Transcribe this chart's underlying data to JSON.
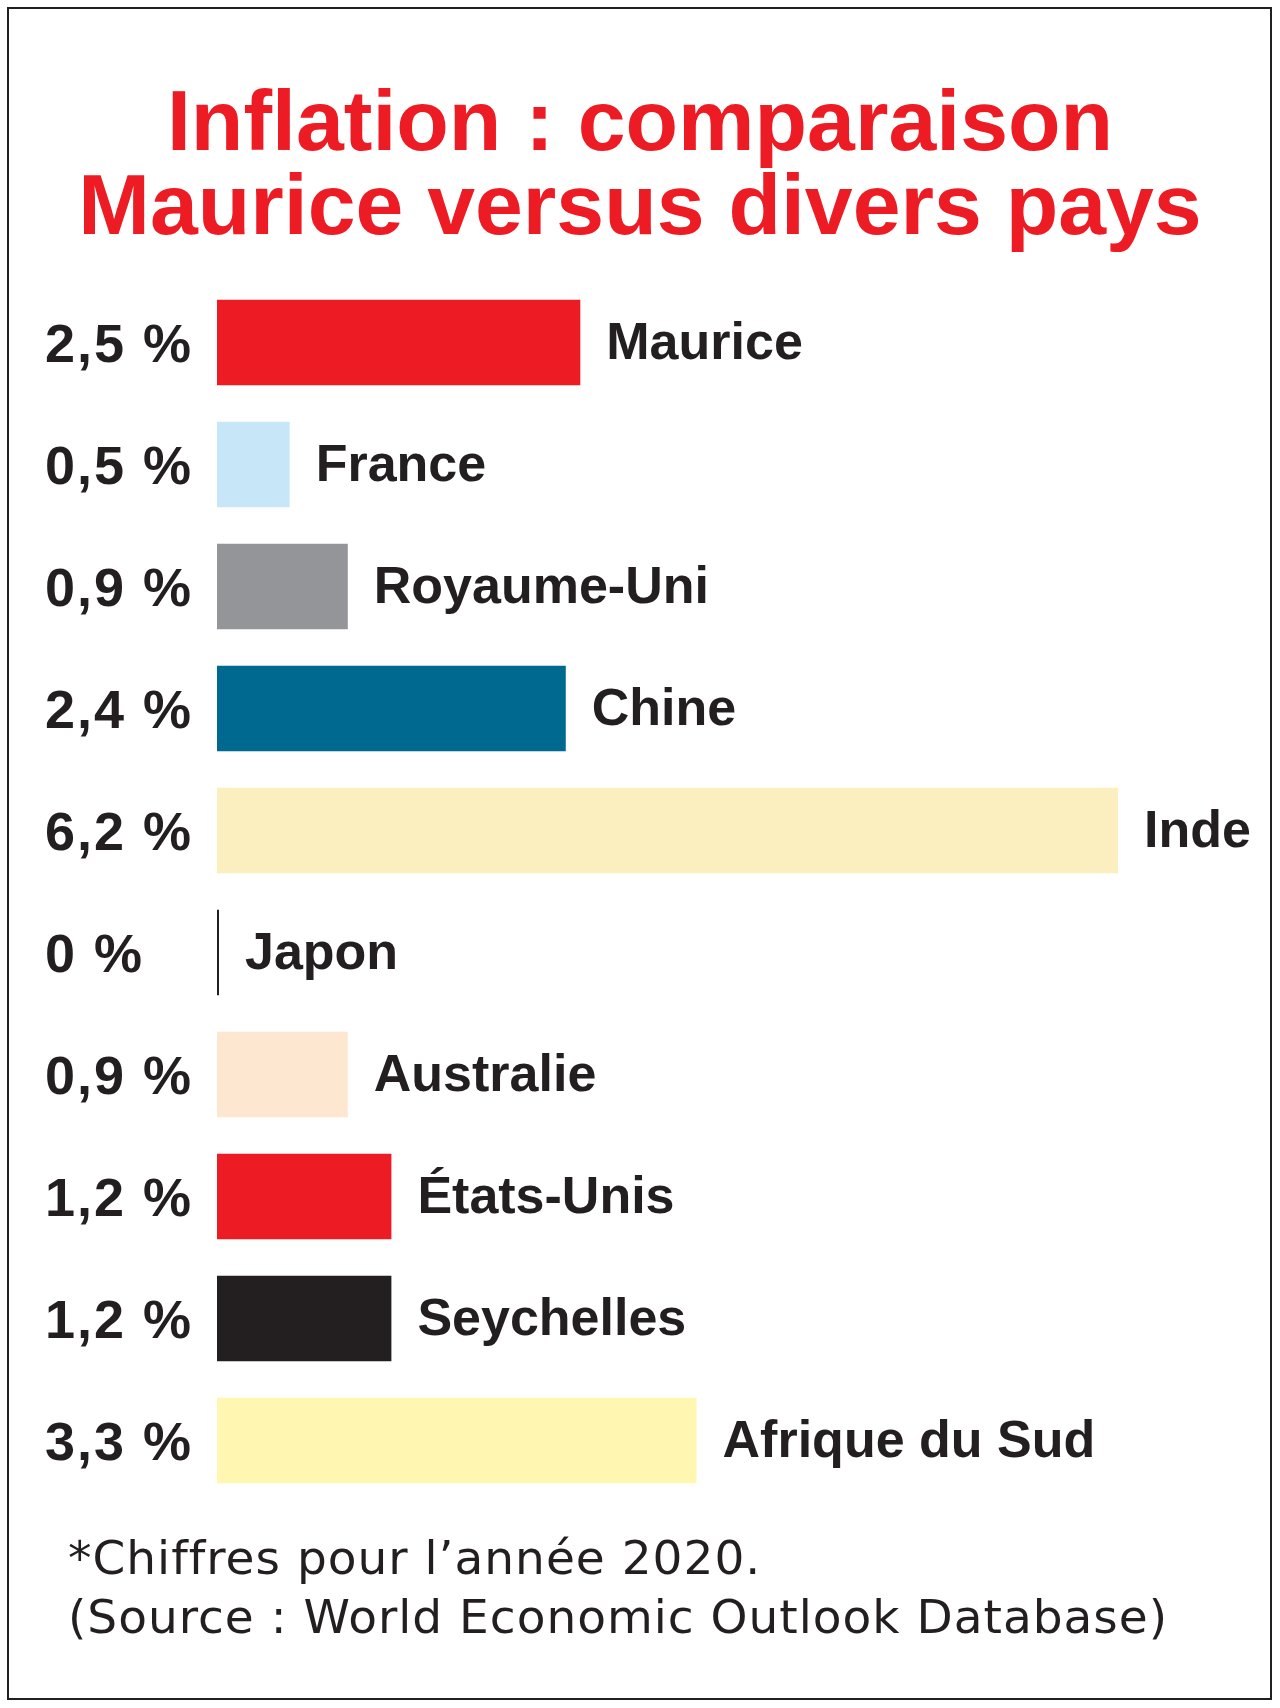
{
  "chart_data": {
    "type": "bar",
    "orientation": "horizontal",
    "title": "Inflation : comparaison Maurice versus divers pays",
    "categories": [
      "Maurice",
      "France",
      "Royaume-Uni",
      "Chine",
      "Inde",
      "Japon",
      "Australie",
      "États-Unis",
      "Seychelles",
      "Afrique du Sud"
    ],
    "values": [
      2.5,
      0.5,
      0.9,
      2.4,
      6.2,
      0,
      0.9,
      1.2,
      1.2,
      3.3
    ],
    "colors": [
      "#ed1c24",
      "#c7e7f9",
      "#939598",
      "#006990",
      "#fcefbf",
      "#231f20",
      "#fde7d0",
      "#ed1c24",
      "#231f20",
      "#fff6b1"
    ],
    "value_labels": [
      "2,5 %",
      "0,5 %",
      "0,9 %",
      "2,4 %",
      "6,2 %",
      "0 %",
      "0,9 %",
      "1,2 %",
      "1,2 %",
      "3,3 %"
    ],
    "tick_labels": "y",
    "annotations": [
      "*Chiffres pour l’année 2020.",
      "(Source : World Economic Outlook Database)"
    ]
  }
}
